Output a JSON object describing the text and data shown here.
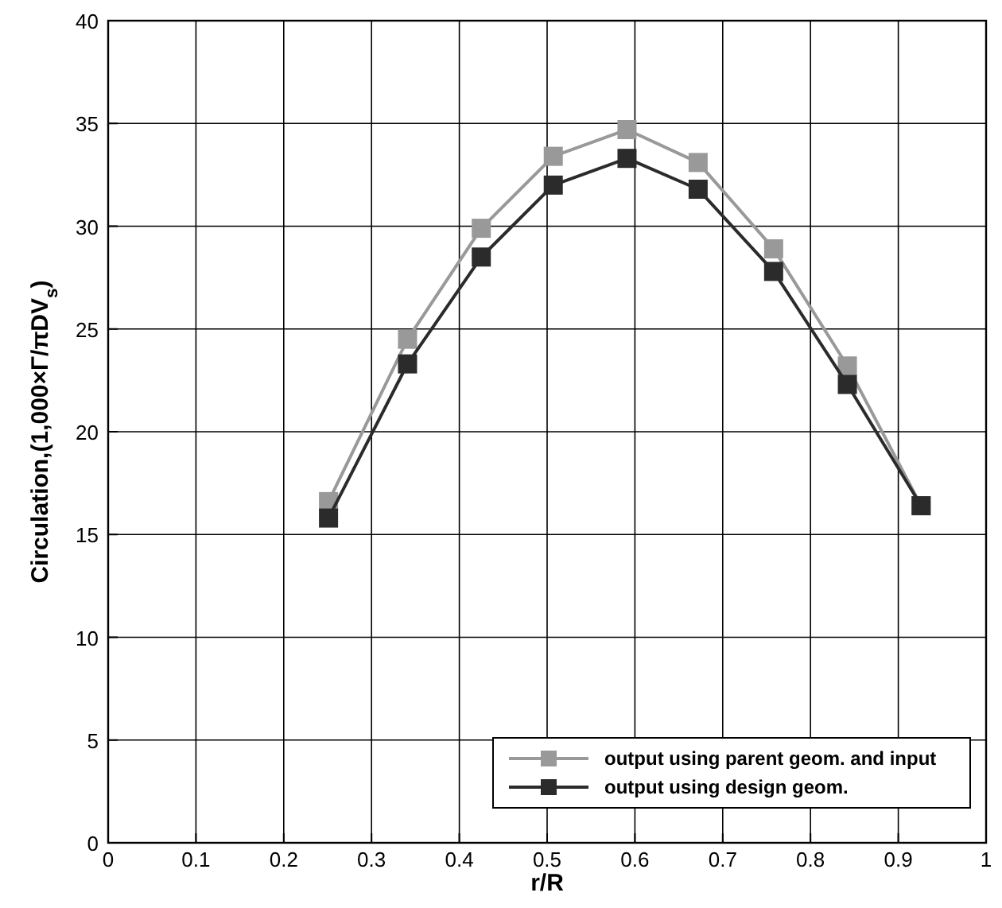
{
  "chart_data": {
    "type": "line",
    "xlabel": "r/R",
    "ylabel": "Circulation,(1,000×Γ/πDV$_{s}$)",
    "x": [
      0.251,
      0.341,
      0.425,
      0.507,
      0.591,
      0.672,
      0.758,
      0.842,
      0.926
    ],
    "series": [
      {
        "name": "output using parent geom. and input",
        "color": "#999999",
        "values": [
          16.6,
          24.5,
          29.9,
          33.4,
          34.7,
          33.1,
          28.9,
          23.2,
          16.4
        ]
      },
      {
        "name": "output using design geom.",
        "color": "#2b2b2b",
        "values": [
          15.8,
          23.3,
          28.5,
          32.0,
          33.3,
          31.8,
          27.8,
          22.3,
          16.4
        ]
      }
    ],
    "xlim": [
      0,
      1
    ],
    "xticks": [
      0,
      0.1,
      0.2,
      0.3,
      0.4,
      0.5,
      0.6,
      0.7,
      0.8,
      0.9,
      1
    ],
    "ylim": [
      0,
      40
    ],
    "yticks": [
      0,
      5,
      10,
      15,
      20,
      25,
      30,
      35,
      40
    ],
    "grid": true,
    "legend": "bottom right",
    "marker": "square",
    "line_style": "solid"
  }
}
